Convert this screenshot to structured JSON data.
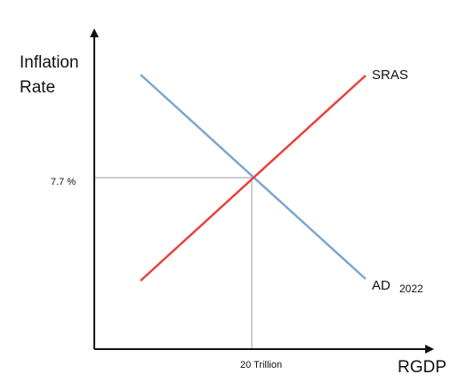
{
  "axes": {
    "y_label_line1": "Inflation",
    "y_label_line2": "Rate",
    "x_label": "RGDP",
    "y_tick": "7.7 %",
    "x_tick": "20 Trillion"
  },
  "curves": {
    "sras": {
      "label": "SRAS",
      "color": "#e8403a"
    },
    "ad": {
      "label": "AD",
      "year": "2022",
      "color": "#7aa6d2"
    }
  },
  "equilibrium": {
    "inflation_rate": "7.7 %",
    "rgdp": "20 Trillion"
  },
  "colors": {
    "axis": "#111111",
    "guide": "#999999"
  }
}
